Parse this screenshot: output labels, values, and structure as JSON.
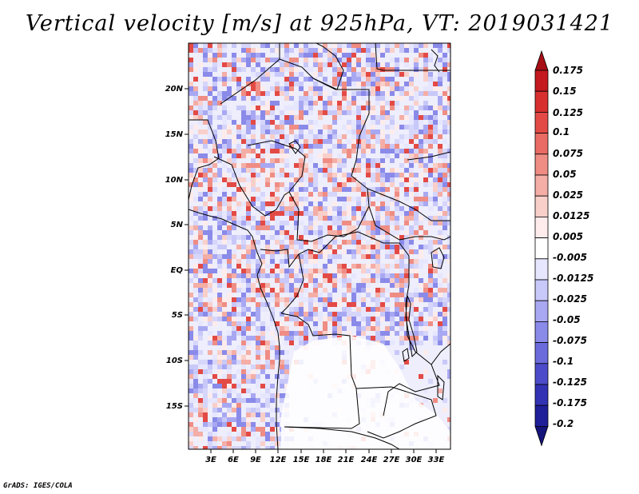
{
  "title": "Vertical velocity [m/s] at 925hPa, VT: 2019031421",
  "credit": "GrADS: IGES/COLA",
  "map": {
    "lat_labels": [
      "20N",
      "15N",
      "10N",
      "5N",
      "EQ",
      "5S",
      "10S",
      "15S"
    ],
    "lon_labels": [
      "3E",
      "6E",
      "9E",
      "12E",
      "15E",
      "18E",
      "21E",
      "24E",
      "27E",
      "30E",
      "33E"
    ]
  },
  "colorbar": {
    "labels": [
      "0.175",
      "0.15",
      "0.125",
      "0.1",
      "0.075",
      "0.05",
      "0.025",
      "0.0125",
      "0.005",
      "-0.005",
      "-0.0125",
      "-0.025",
      "-0.05",
      "-0.075",
      "-0.1",
      "-0.125",
      "-0.175",
      "-0.2"
    ],
    "colors": [
      "#a50f15",
      "#c4191f",
      "#d7302f",
      "#e34a45",
      "#ea6b63",
      "#ef8d84",
      "#f4aea6",
      "#f9cfca",
      "#fdeceb",
      "#ffffff",
      "#e6e6ff",
      "#c8c8f9",
      "#a8a8f2",
      "#8a8ae9",
      "#6b6bdc",
      "#4c4cca",
      "#3232b4",
      "#1f1f99",
      "#14147a"
    ]
  }
}
